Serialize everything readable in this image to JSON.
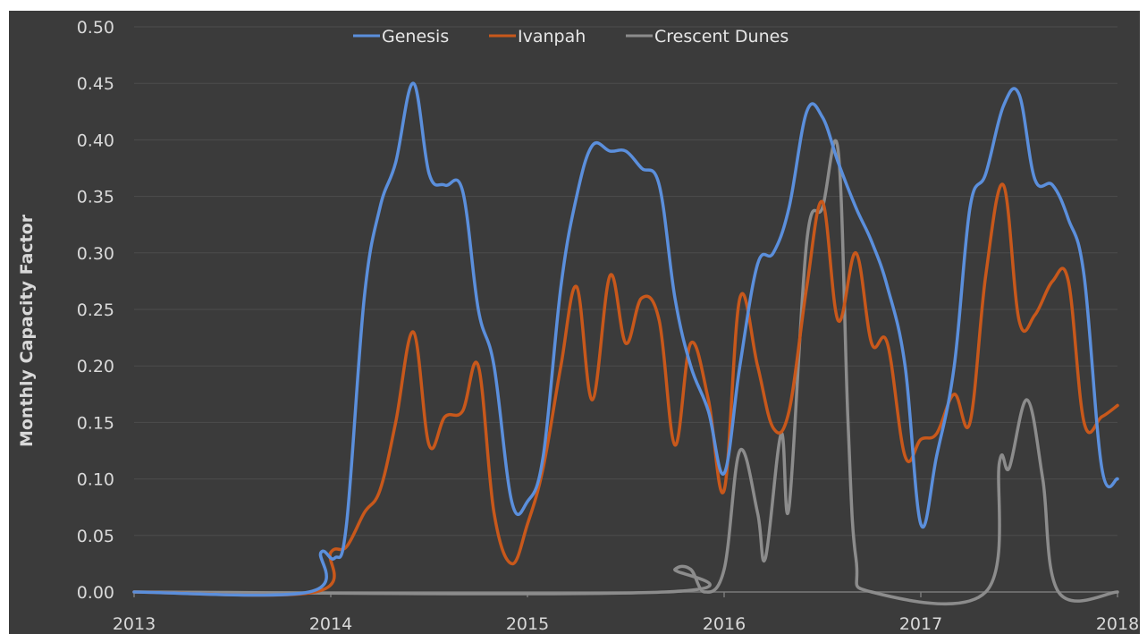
{
  "chart_data": {
    "type": "line",
    "title": "",
    "xlabel": "",
    "ylabel": "Monthly Capacity Factor",
    "xlim": [
      2013,
      2018
    ],
    "ylim": [
      0,
      0.5
    ],
    "x_ticks": [
      "2013",
      "2014",
      "2015",
      "2016",
      "2017",
      "2018"
    ],
    "y_ticks": [
      "0.00",
      "0.05",
      "0.10",
      "0.15",
      "0.20",
      "0.25",
      "0.30",
      "0.35",
      "0.40",
      "0.45",
      "0.50"
    ],
    "grid": true,
    "legend": "top-center",
    "series": [
      {
        "name": "Genesis",
        "color": "#5b8fdc",
        "points": [
          [
            2013.0,
            0.0
          ],
          [
            2013.89,
            0.0
          ],
          [
            2013.95,
            0.035
          ],
          [
            2014.02,
            0.03
          ],
          [
            2014.08,
            0.06
          ],
          [
            2014.17,
            0.26
          ],
          [
            2014.25,
            0.34
          ],
          [
            2014.33,
            0.38
          ],
          [
            2014.42,
            0.45
          ],
          [
            2014.5,
            0.37
          ],
          [
            2014.58,
            0.36
          ],
          [
            2014.67,
            0.355
          ],
          [
            2014.75,
            0.25
          ],
          [
            2014.83,
            0.2
          ],
          [
            2014.92,
            0.08
          ],
          [
            2015.0,
            0.08
          ],
          [
            2015.08,
            0.12
          ],
          [
            2015.17,
            0.27
          ],
          [
            2015.25,
            0.35
          ],
          [
            2015.33,
            0.395
          ],
          [
            2015.42,
            0.39
          ],
          [
            2015.5,
            0.39
          ],
          [
            2015.58,
            0.375
          ],
          [
            2015.67,
            0.36
          ],
          [
            2015.75,
            0.26
          ],
          [
            2015.83,
            0.2
          ],
          [
            2015.92,
            0.16
          ],
          [
            2016.0,
            0.105
          ],
          [
            2016.08,
            0.2
          ],
          [
            2016.17,
            0.29
          ],
          [
            2016.25,
            0.3
          ],
          [
            2016.33,
            0.34
          ],
          [
            2016.42,
            0.425
          ],
          [
            2016.5,
            0.42
          ],
          [
            2016.58,
            0.38
          ],
          [
            2016.67,
            0.34
          ],
          [
            2016.75,
            0.31
          ],
          [
            2016.83,
            0.27
          ],
          [
            2016.92,
            0.2
          ],
          [
            2017.0,
            0.06
          ],
          [
            2017.08,
            0.12
          ],
          [
            2017.17,
            0.2
          ],
          [
            2017.25,
            0.34
          ],
          [
            2017.33,
            0.37
          ],
          [
            2017.42,
            0.43
          ],
          [
            2017.5,
            0.44
          ],
          [
            2017.58,
            0.365
          ],
          [
            2017.67,
            0.36
          ],
          [
            2017.75,
            0.33
          ],
          [
            2017.83,
            0.28
          ],
          [
            2017.92,
            0.11
          ],
          [
            2018.0,
            0.1
          ]
        ]
      },
      {
        "name": "Ivanpah",
        "color": "#c8581b",
        "points": [
          [
            2013.0,
            0.0
          ],
          [
            2013.92,
            0.0
          ],
          [
            2014.0,
            0.035
          ],
          [
            2014.08,
            0.04
          ],
          [
            2014.17,
            0.07
          ],
          [
            2014.25,
            0.09
          ],
          [
            2014.33,
            0.15
          ],
          [
            2014.42,
            0.23
          ],
          [
            2014.5,
            0.13
          ],
          [
            2014.58,
            0.155
          ],
          [
            2014.67,
            0.16
          ],
          [
            2014.75,
            0.2
          ],
          [
            2014.83,
            0.07
          ],
          [
            2014.92,
            0.025
          ],
          [
            2015.0,
            0.06
          ],
          [
            2015.08,
            0.11
          ],
          [
            2015.17,
            0.2
          ],
          [
            2015.25,
            0.27
          ],
          [
            2015.33,
            0.17
          ],
          [
            2015.42,
            0.28
          ],
          [
            2015.5,
            0.22
          ],
          [
            2015.58,
            0.26
          ],
          [
            2015.67,
            0.24
          ],
          [
            2015.75,
            0.13
          ],
          [
            2015.83,
            0.22
          ],
          [
            2015.92,
            0.17
          ],
          [
            2016.0,
            0.09
          ],
          [
            2016.08,
            0.26
          ],
          [
            2016.17,
            0.2
          ],
          [
            2016.25,
            0.145
          ],
          [
            2016.33,
            0.16
          ],
          [
            2016.42,
            0.27
          ],
          [
            2016.5,
            0.345
          ],
          [
            2016.58,
            0.24
          ],
          [
            2016.67,
            0.3
          ],
          [
            2016.75,
            0.22
          ],
          [
            2016.83,
            0.22
          ],
          [
            2016.92,
            0.12
          ],
          [
            2017.0,
            0.135
          ],
          [
            2017.08,
            0.14
          ],
          [
            2017.17,
            0.175
          ],
          [
            2017.25,
            0.15
          ],
          [
            2017.33,
            0.28
          ],
          [
            2017.42,
            0.36
          ],
          [
            2017.5,
            0.24
          ],
          [
            2017.58,
            0.245
          ],
          [
            2017.67,
            0.275
          ],
          [
            2017.75,
            0.275
          ],
          [
            2017.83,
            0.15
          ],
          [
            2017.92,
            0.155
          ],
          [
            2018.0,
            0.165
          ]
        ]
      },
      {
        "name": "Crescent Dunes",
        "color": "#8c8c8c",
        "points": [
          [
            2013.0,
            0.0
          ],
          [
            2015.7,
            0.0
          ],
          [
            2015.75,
            0.02
          ],
          [
            2015.83,
            0.02
          ],
          [
            2015.9,
            0.0
          ],
          [
            2016.0,
            0.02
          ],
          [
            2016.08,
            0.125
          ],
          [
            2016.17,
            0.07
          ],
          [
            2016.21,
            0.03
          ],
          [
            2016.29,
            0.14
          ],
          [
            2016.33,
            0.075
          ],
          [
            2016.42,
            0.31
          ],
          [
            2016.5,
            0.34
          ],
          [
            2016.58,
            0.39
          ],
          [
            2016.63,
            0.15
          ],
          [
            2016.67,
            0.03
          ],
          [
            2016.75,
            0.0
          ],
          [
            2017.33,
            0.0
          ],
          [
            2017.4,
            0.115
          ],
          [
            2017.45,
            0.11
          ],
          [
            2017.54,
            0.17
          ],
          [
            2017.62,
            0.1
          ],
          [
            2017.7,
            0.0
          ],
          [
            2018.0,
            0.0
          ]
        ]
      }
    ]
  }
}
